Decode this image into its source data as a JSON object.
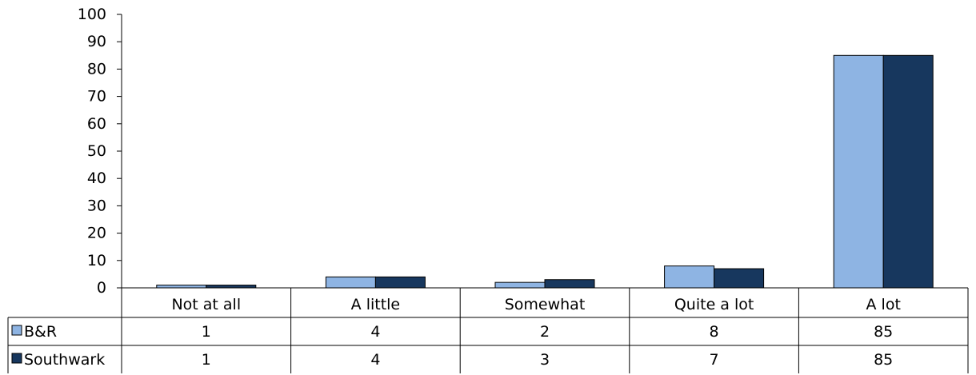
{
  "chart_data": {
    "type": "bar",
    "categories": [
      "Not at all",
      "A little",
      "Somewhat",
      "Quite a lot",
      "A lot"
    ],
    "series": [
      {
        "name": "B&R",
        "values": [
          1,
          4,
          2,
          8,
          85
        ],
        "color": "#8eb4e3"
      },
      {
        "name": "Southwark",
        "values": [
          1,
          4,
          3,
          7,
          85
        ],
        "color": "#17375e"
      }
    ],
    "ylim": [
      0,
      100
    ],
    "yticks": [
      0,
      10,
      20,
      30,
      40,
      50,
      60,
      70,
      80,
      90,
      100
    ],
    "grid": false,
    "legend": "data-table",
    "title": "",
    "xlabel": "",
    "ylabel": ""
  }
}
